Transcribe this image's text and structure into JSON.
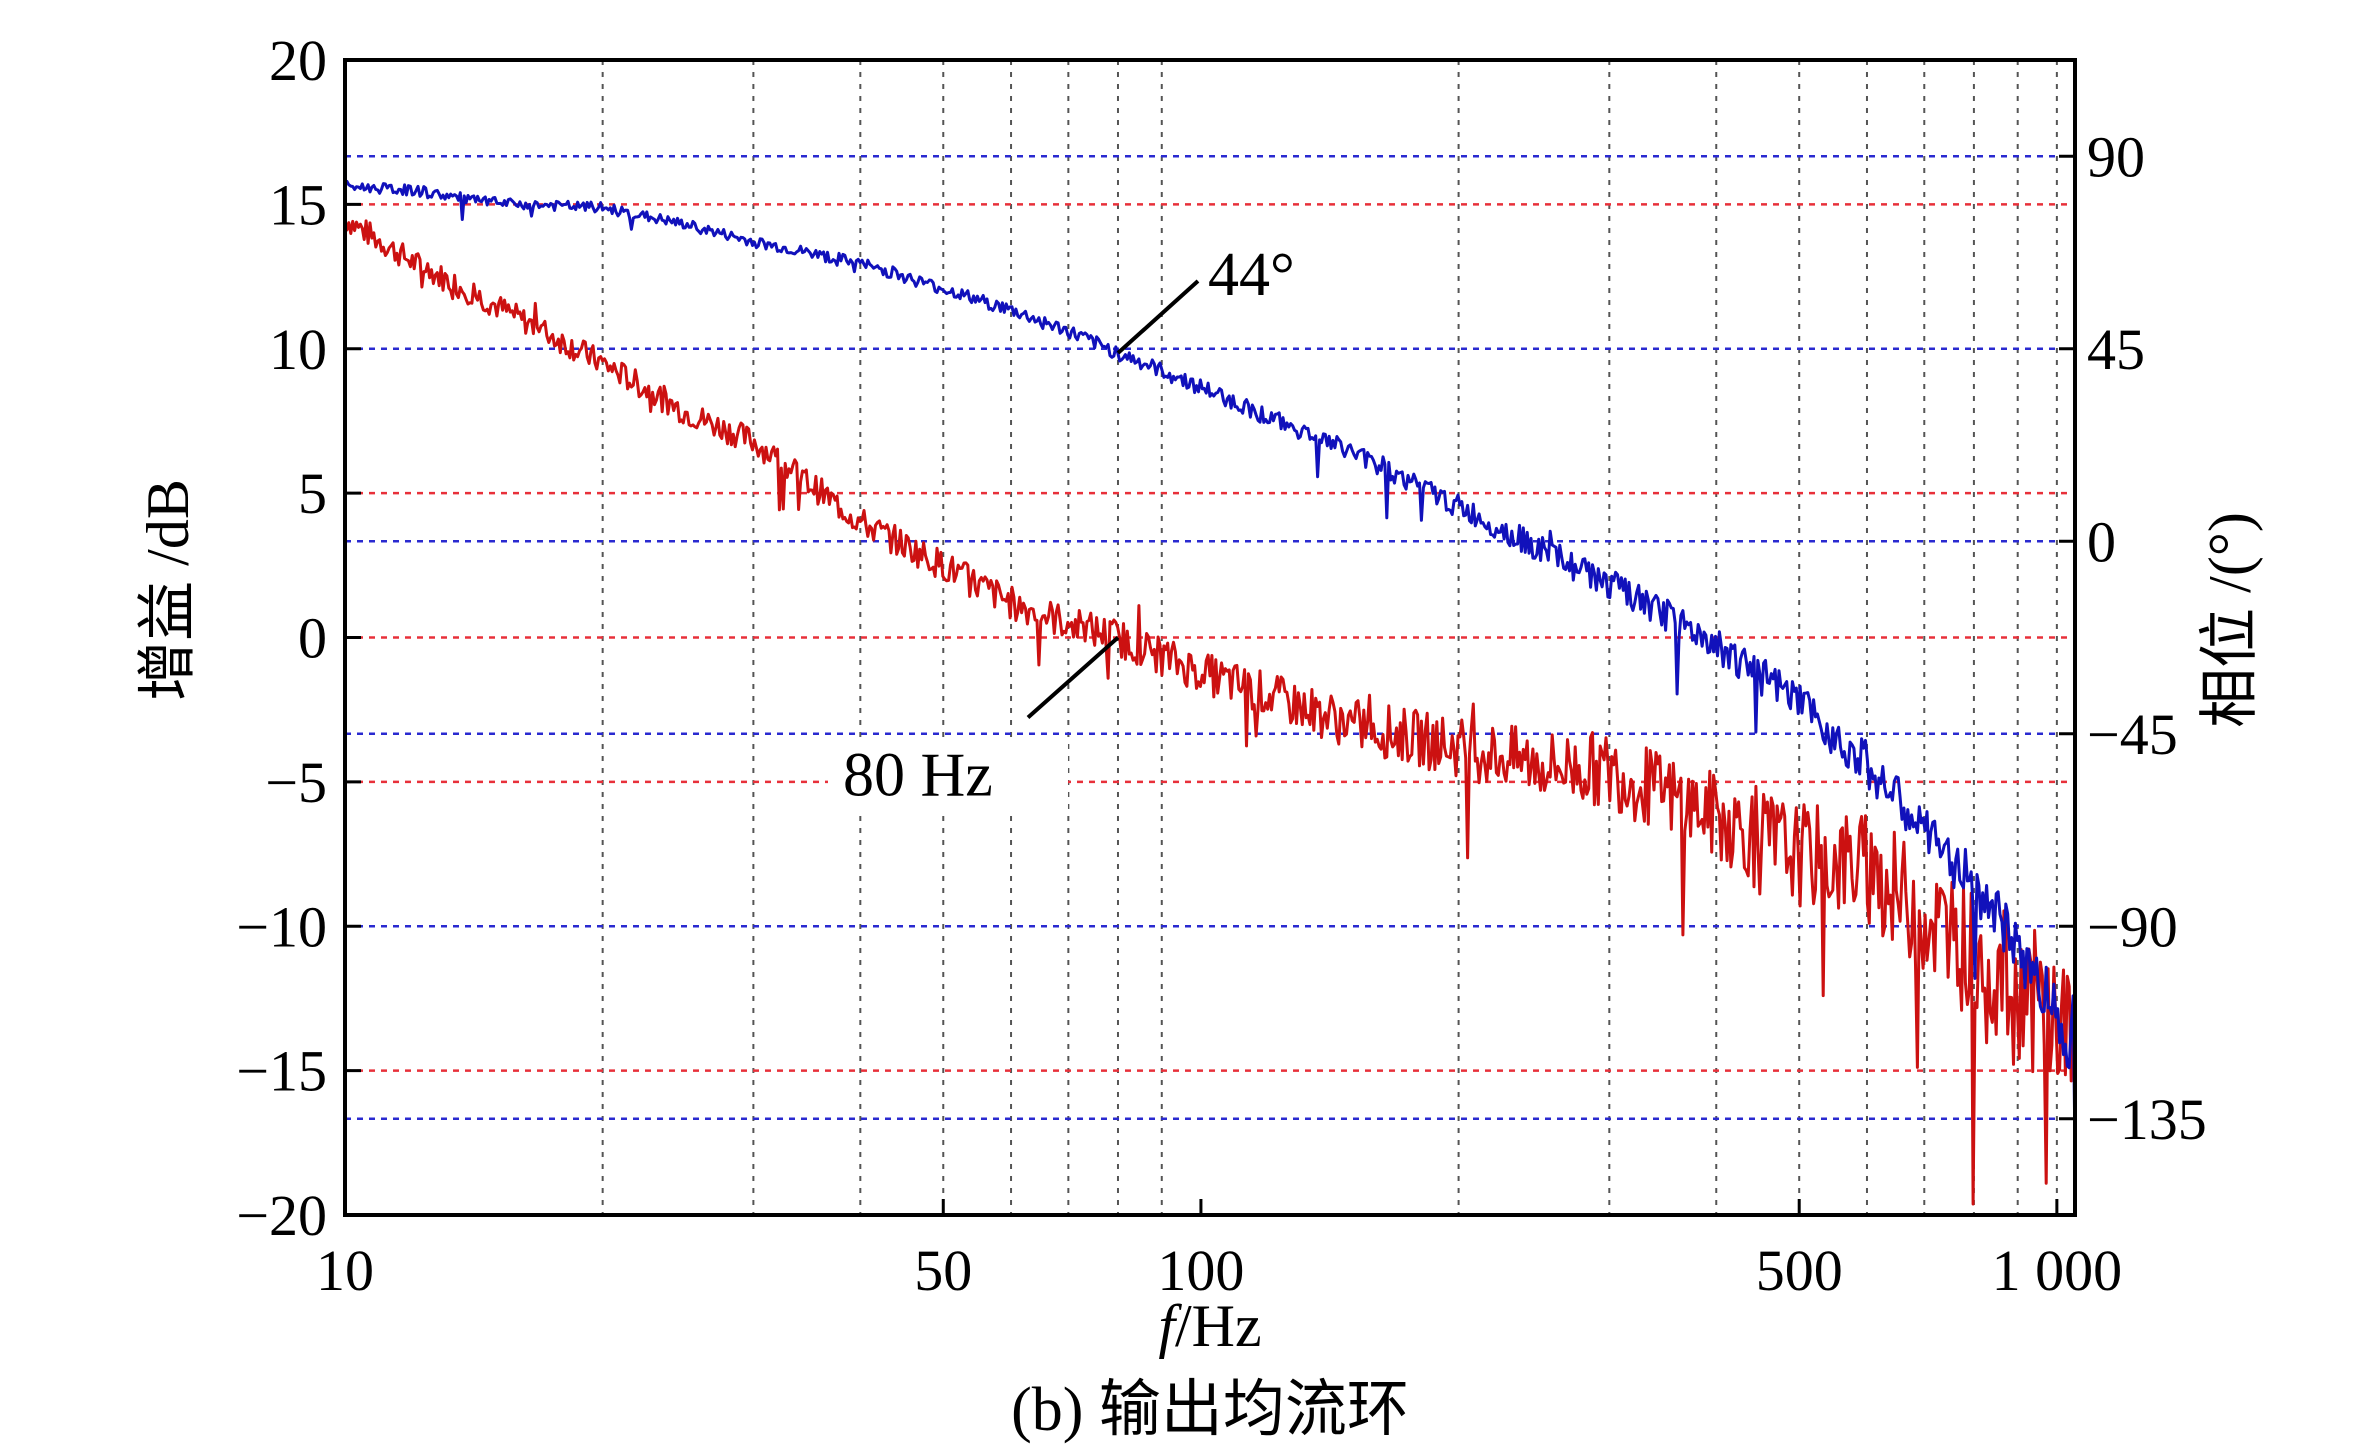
{
  "chart_data": {
    "type": "line",
    "caption": "(b) 输出均流环",
    "x_axis": {
      "label_italic": "f",
      "label_unit": "/Hz",
      "scale": "log",
      "range": [
        10,
        1050
      ],
      "ticks": [
        10,
        50,
        100,
        500,
        1000
      ],
      "tick_labels": [
        "10",
        "50",
        "100",
        "500",
        "1 000"
      ],
      "grid": true
    },
    "y_left": {
      "label": "增益 /dB",
      "range": [
        -20,
        20
      ],
      "ticks": [
        -20,
        -15,
        -10,
        -5,
        0,
        5,
        10,
        15,
        20
      ],
      "tick_labels": [
        "−20",
        "−15",
        "−10",
        "−5",
        "0",
        "5",
        "10",
        "15",
        "20"
      ],
      "grid_color": "#e8303a"
    },
    "y_right": {
      "label": "相位 /(°)",
      "range": [
        -157.5,
        112.5
      ],
      "ticks": [
        -135,
        -90,
        -45,
        0,
        45,
        90
      ],
      "tick_labels": [
        "−135",
        "−90",
        "−45",
        "0",
        "45",
        "90"
      ],
      "grid_color": "#2a2ad0"
    },
    "series": [
      {
        "axis": "left",
        "color": "#cc1111",
        "noise": 0.45,
        "x": [
          10,
          12,
          15,
          20,
          25,
          30,
          40,
          50,
          60,
          70,
          80,
          100,
          120,
          150,
          200,
          250,
          300,
          400,
          500,
          600,
          700,
          800,
          900,
          1000,
          1050
        ],
        "y": [
          14.5,
          13,
          11.5,
          9.5,
          7.8,
          6.8,
          4,
          2.5,
          1.2,
          0.5,
          0,
          -1.2,
          -2,
          -3,
          -3.8,
          -4.4,
          -4.6,
          -6.2,
          -7.5,
          -8,
          -9.6,
          -11,
          -12.2,
          -13.2,
          -14
        ]
      },
      {
        "axis": "right",
        "color": "#1111bb",
        "noise": 1.2,
        "x": [
          10,
          12,
          15,
          20,
          25,
          30,
          40,
          50,
          60,
          70,
          80,
          100,
          120,
          150,
          200,
          250,
          300,
          400,
          500,
          600,
          700,
          800,
          900,
          1000,
          1050
        ],
        "y": [
          83,
          82,
          79,
          78,
          74,
          70,
          65,
          59,
          54,
          49,
          44,
          36,
          29,
          21,
          8,
          -2,
          -10,
          -24,
          -38,
          -52,
          -68,
          -80,
          -95,
          -110,
          -120
        ]
      }
    ],
    "annotations": [
      {
        "text": "44°",
        "x": 80,
        "axis": "right",
        "y": 44
      },
      {
        "text": "80 Hz",
        "x": 80,
        "axis": "left",
        "y": 0
      }
    ]
  }
}
